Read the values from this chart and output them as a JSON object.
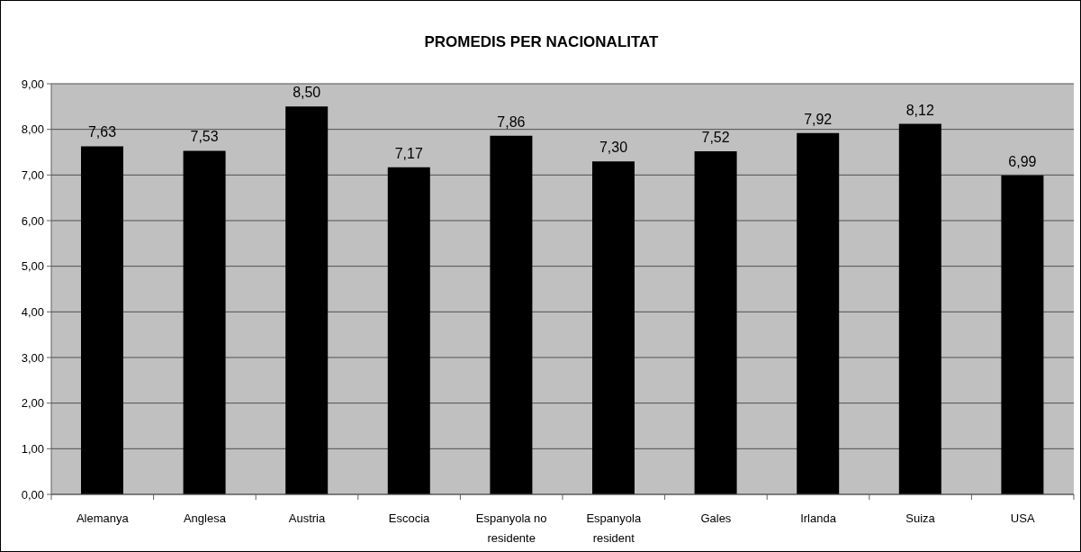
{
  "chart_data": {
    "type": "bar",
    "title": "PROMEDIS PER NACIONALITAT",
    "categories": [
      "Alemanya",
      "Anglesa",
      "Austria",
      "Escocia",
      "Espanyola no residente",
      "Espanyola resident",
      "Gales",
      "Irlanda",
      "Suiza",
      "USA"
    ],
    "values": [
      7.63,
      7.53,
      8.5,
      7.17,
      7.86,
      7.3,
      7.52,
      7.92,
      8.12,
      6.99
    ],
    "value_labels": [
      "7,63",
      "7,53",
      "8,50",
      "7,17",
      "7,86",
      "7,30",
      "7,52",
      "7,92",
      "8,12",
      "6,99"
    ],
    "color": "#000000",
    "ylim": [
      0,
      9
    ],
    "yticks": [
      {
        "value": 0,
        "label": "0,00"
      },
      {
        "value": 1,
        "label": "1,00"
      },
      {
        "value": 2,
        "label": "2,00"
      },
      {
        "value": 3,
        "label": "3,00"
      },
      {
        "value": 4,
        "label": "4,00"
      },
      {
        "value": 5,
        "label": "5,00"
      },
      {
        "value": 6,
        "label": "6,00"
      },
      {
        "value": 7,
        "label": "7,00"
      },
      {
        "value": 8,
        "label": "8,00"
      },
      {
        "value": 9,
        "label": "9,00"
      }
    ],
    "grid": "y"
  }
}
